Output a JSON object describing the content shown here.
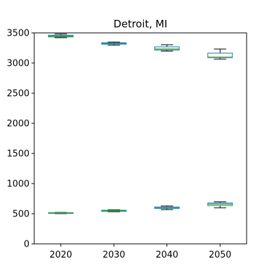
{
  "chart_data": {
    "type": "boxplot",
    "title": "Detroit, MI",
    "xlabel": "",
    "ylabel": "",
    "categories": [
      "2020",
      "2030",
      "2040",
      "2050"
    ],
    "ylim": [
      0,
      3500
    ],
    "yticks": [
      "0",
      "500",
      "1000",
      "1500",
      "2000",
      "2500",
      "3000",
      "3500"
    ],
    "grid": false,
    "colors": {
      "box": "#1f77b4",
      "median": "#2ca02c",
      "whisker": "#000000",
      "axis": "#000000"
    },
    "series": [
      {
        "boxes": [
          {
            "category": "2020",
            "whislo": 3420,
            "q1": 3433,
            "median": 3447,
            "q3": 3462,
            "whishi": 3482
          },
          {
            "category": "2030",
            "whislo": 3295,
            "q1": 3313,
            "median": 3325,
            "q3": 3337,
            "whishi": 3348
          },
          {
            "category": "2040",
            "whislo": 3197,
            "q1": 3215,
            "median": 3232,
            "q3": 3268,
            "whishi": 3303
          },
          {
            "category": "2050",
            "whislo": 3065,
            "q1": 3090,
            "median": 3098,
            "q3": 3165,
            "whishi": 3232
          }
        ]
      },
      {
        "boxes": [
          {
            "category": "2020",
            "whislo": 502,
            "q1": 507,
            "median": 512,
            "q3": 517,
            "whishi": 522
          },
          {
            "category": "2030",
            "whislo": 532,
            "q1": 540,
            "median": 549,
            "q3": 558,
            "whishi": 566
          },
          {
            "category": "2040",
            "whislo": 568,
            "q1": 588,
            "median": 598,
            "q3": 612,
            "whishi": 628
          },
          {
            "category": "2050",
            "whislo": 598,
            "q1": 635,
            "median": 660,
            "q3": 680,
            "whishi": 697
          }
        ]
      }
    ]
  }
}
